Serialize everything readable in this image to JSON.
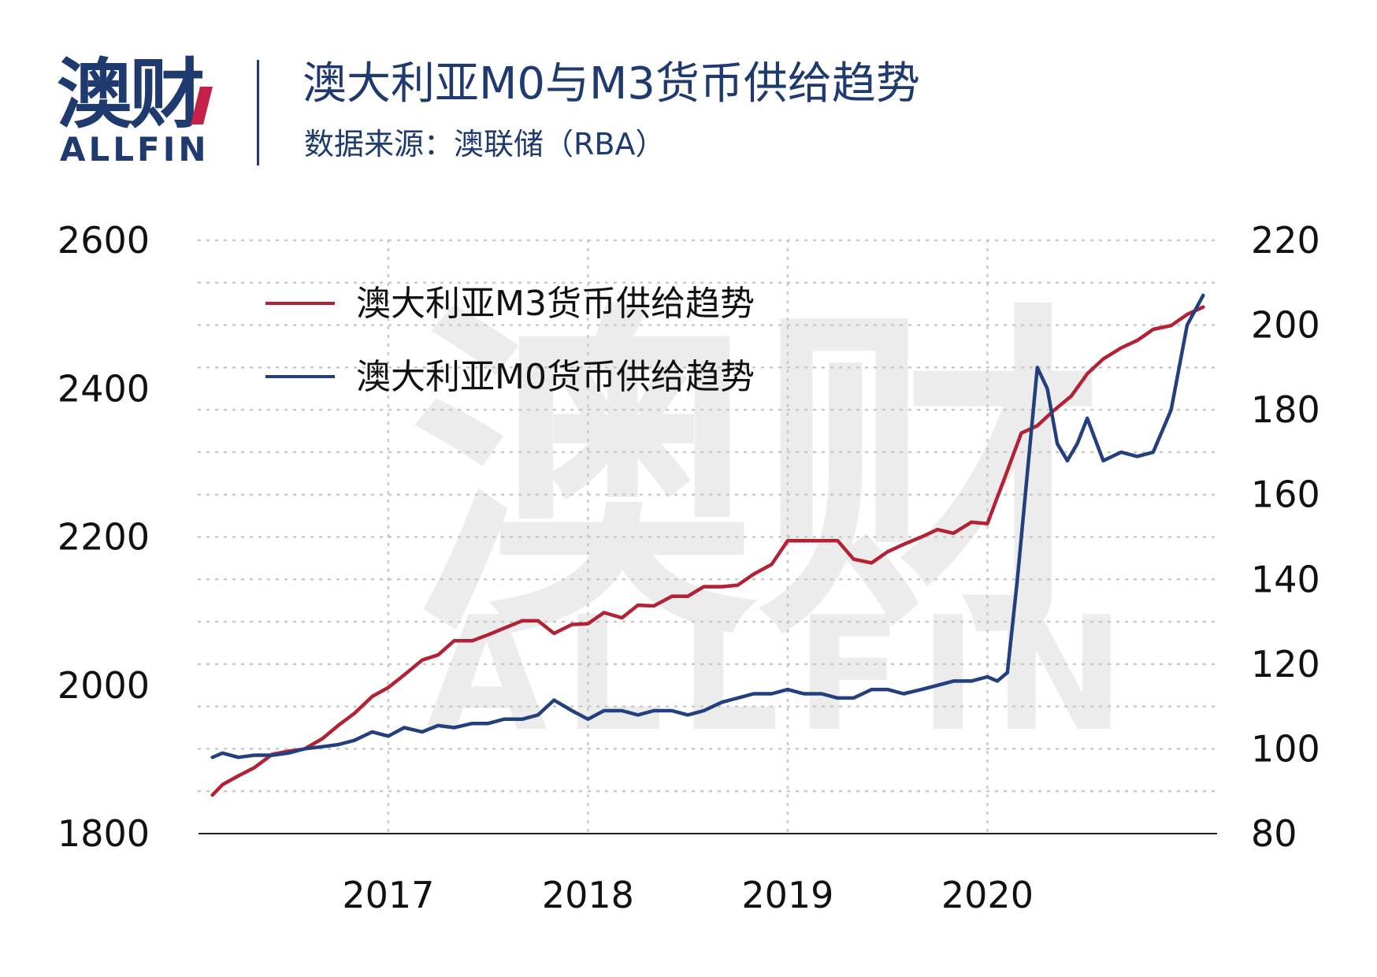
{
  "header": {
    "logo_cn": "澳财",
    "logo_en": "ALLFIN",
    "title": "澳大利亚M0与M3货币供给趋势",
    "subtitle": "数据来源：澳联储（RBA）"
  },
  "watermark": {
    "cn": "澳财",
    "en": "ALLFIN"
  },
  "colors": {
    "m3": "#b22234",
    "m0": "#233f7e",
    "brand": "#1f3a6e",
    "accent": "#c4204a"
  },
  "chart_data": {
    "type": "line",
    "title": "澳大利亚M0与M3货币供给趋势",
    "grid": true,
    "legend_position": "top-left",
    "x_ticks": [
      {
        "value": 2017,
        "label": "2017"
      },
      {
        "value": 2018,
        "label": "2018"
      },
      {
        "value": 2019,
        "label": "2019"
      },
      {
        "value": 2020,
        "label": "2020"
      }
    ],
    "xlim": [
      2016.05,
      2021.15
    ],
    "y_left": {
      "lim": [
        1800,
        2600
      ],
      "ticks": [
        "1800",
        "2000",
        "2200",
        "2400",
        "2600"
      ]
    },
    "y_right": {
      "lim": [
        80,
        220
      ],
      "ticks": [
        "80",
        "100",
        "120",
        "140",
        "160",
        "180",
        "200",
        "220"
      ]
    },
    "series": [
      {
        "name": "澳大利亚M3货币供给趋势",
        "axis": "left",
        "color": "#b22234",
        "x": [
          2016.12,
          2016.17,
          2016.25,
          2016.33,
          2016.42,
          2016.5,
          2016.58,
          2016.67,
          2016.75,
          2016.83,
          2016.92,
          2017.0,
          2017.08,
          2017.17,
          2017.25,
          2017.33,
          2017.42,
          2017.5,
          2017.58,
          2017.67,
          2017.75,
          2017.83,
          2017.92,
          2018.0,
          2018.08,
          2018.17,
          2018.25,
          2018.33,
          2018.42,
          2018.5,
          2018.58,
          2018.67,
          2018.75,
          2018.83,
          2018.92,
          2019.0,
          2019.08,
          2019.17,
          2019.25,
          2019.33,
          2019.42,
          2019.5,
          2019.58,
          2019.67,
          2019.75,
          2019.83,
          2019.92,
          2020.0,
          2020.08,
          2020.17,
          2020.25,
          2020.33,
          2020.42,
          2020.5,
          2020.58,
          2020.67,
          2020.75,
          2020.83,
          2020.92,
          2021.0,
          2021.08
        ],
        "values": [
          1852,
          1866,
          1878,
          1889,
          1907,
          1911,
          1914,
          1928,
          1946,
          1962,
          1985,
          1997,
          2014,
          2034,
          2041,
          2060,
          2060,
          2068,
          2077,
          2087,
          2087,
          2070,
          2082,
          2083,
          2098,
          2091,
          2108,
          2107,
          2120,
          2120,
          2133,
          2133,
          2135,
          2150,
          2163,
          2195,
          2195,
          2195,
          2195,
          2170,
          2165,
          2180,
          2190,
          2200,
          2210,
          2205,
          2220,
          2218,
          2275,
          2340,
          2350,
          2370,
          2390,
          2420,
          2440,
          2455,
          2465,
          2480,
          2485,
          2500,
          2510
        ]
      },
      {
        "name": "澳大利亚M0货币供给趋势",
        "axis": "right",
        "color": "#233f7e",
        "x": [
          2016.12,
          2016.17,
          2016.25,
          2016.33,
          2016.42,
          2016.5,
          2016.58,
          2016.67,
          2016.75,
          2016.83,
          2016.92,
          2017.0,
          2017.08,
          2017.17,
          2017.25,
          2017.33,
          2017.42,
          2017.5,
          2017.58,
          2017.67,
          2017.75,
          2017.83,
          2017.92,
          2018.0,
          2018.08,
          2018.17,
          2018.25,
          2018.33,
          2018.42,
          2018.5,
          2018.58,
          2018.67,
          2018.75,
          2018.83,
          2018.92,
          2019.0,
          2019.08,
          2019.17,
          2019.25,
          2019.33,
          2019.42,
          2019.5,
          2019.58,
          2019.67,
          2019.75,
          2019.83,
          2019.92,
          2020.0,
          2020.05,
          2020.1,
          2020.15,
          2020.2,
          2020.25,
          2020.3,
          2020.35,
          2020.4,
          2020.45,
          2020.5,
          2020.58,
          2020.67,
          2020.75,
          2020.83,
          2020.92,
          2021.0,
          2021.08
        ],
        "values": [
          98,
          99,
          98,
          98.5,
          98.5,
          99,
          100,
          100.5,
          101,
          102,
          104,
          103,
          105,
          104,
          105.5,
          105,
          106,
          106,
          107,
          107,
          108,
          111.5,
          109,
          107,
          109,
          109,
          108,
          109,
          109,
          108,
          109,
          111,
          112,
          113,
          113,
          114,
          113,
          113,
          112,
          112,
          114,
          114,
          113,
          114,
          115,
          116,
          116,
          117,
          116,
          118,
          140,
          165,
          190,
          185,
          172,
          168,
          172,
          178,
          168,
          170,
          169,
          170,
          180,
          200,
          207
        ]
      }
    ]
  }
}
